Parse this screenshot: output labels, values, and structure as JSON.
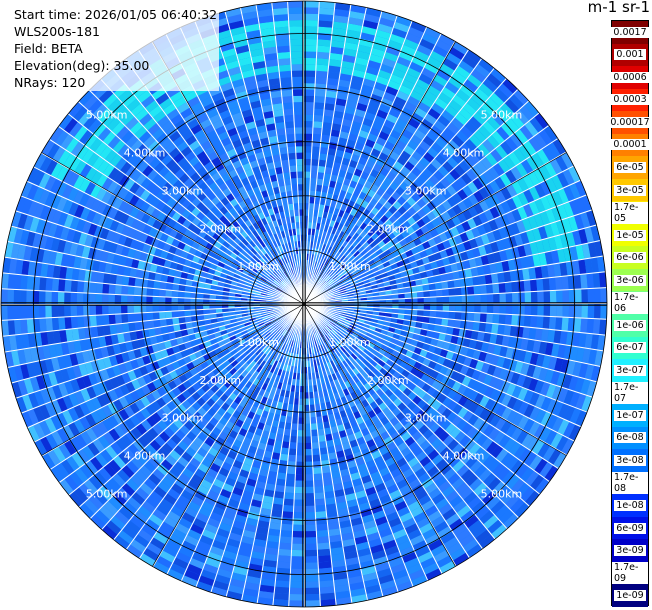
{
  "info": {
    "start_time": "Start time: 2026/01/05 06:40:32",
    "instrument": "WLS200s-181",
    "field": "Field: BETA",
    "elevation": "Elevation(deg): 35.00",
    "nrays": "NRays: 120"
  },
  "colorbar": {
    "unit_label": "m-1 sr-1",
    "ticks": [
      "0.0017",
      "0.001",
      "0.0006",
      "0.0003",
      "0.00017",
      "0.0001",
      "6e-05",
      "3e-05",
      "1.7e-05",
      "1e-05",
      "6e-06",
      "3e-06",
      "1.7e-06",
      "1e-06",
      "6e-07",
      "3e-07",
      "1.7e-07",
      "1e-07",
      "6e-08",
      "3e-08",
      "1.7e-08",
      "1e-08",
      "6e-09",
      "3e-09",
      "1.7e-09",
      "1e-09"
    ],
    "colors": [
      "#800000",
      "#b00000",
      "#e00000",
      "#ff2000",
      "#ff5000",
      "#ff8000",
      "#ffa500",
      "#ffc800",
      "#ffe600",
      "#f0ff00",
      "#c8ff20",
      "#9cff50",
      "#78ff80",
      "#50ffa8",
      "#30ffd0",
      "#20f0ff",
      "#00d0ff",
      "#00b0ff",
      "#0090ff",
      "#0070ff",
      "#0050ff",
      "#0030ff",
      "#0010e8",
      "#0000c8",
      "#0000a0",
      "#000080"
    ]
  },
  "range_labels": [
    "1.00km",
    "2.00km",
    "3.00km",
    "4.00km",
    "5.00km"
  ],
  "colors": {
    "background": "#ffffff",
    "base_blue": "#1a78ff",
    "far_band": "#19d3f0",
    "grid": "#000000"
  },
  "chart_data": {
    "type": "heatmap",
    "projection": "polar (PPI)",
    "field": "BETA",
    "n_rays": 120,
    "elevation_deg": 35.0,
    "max_range_km": 5.6,
    "range_rings_km": [
      1,
      2,
      3,
      4,
      5
    ]
  }
}
